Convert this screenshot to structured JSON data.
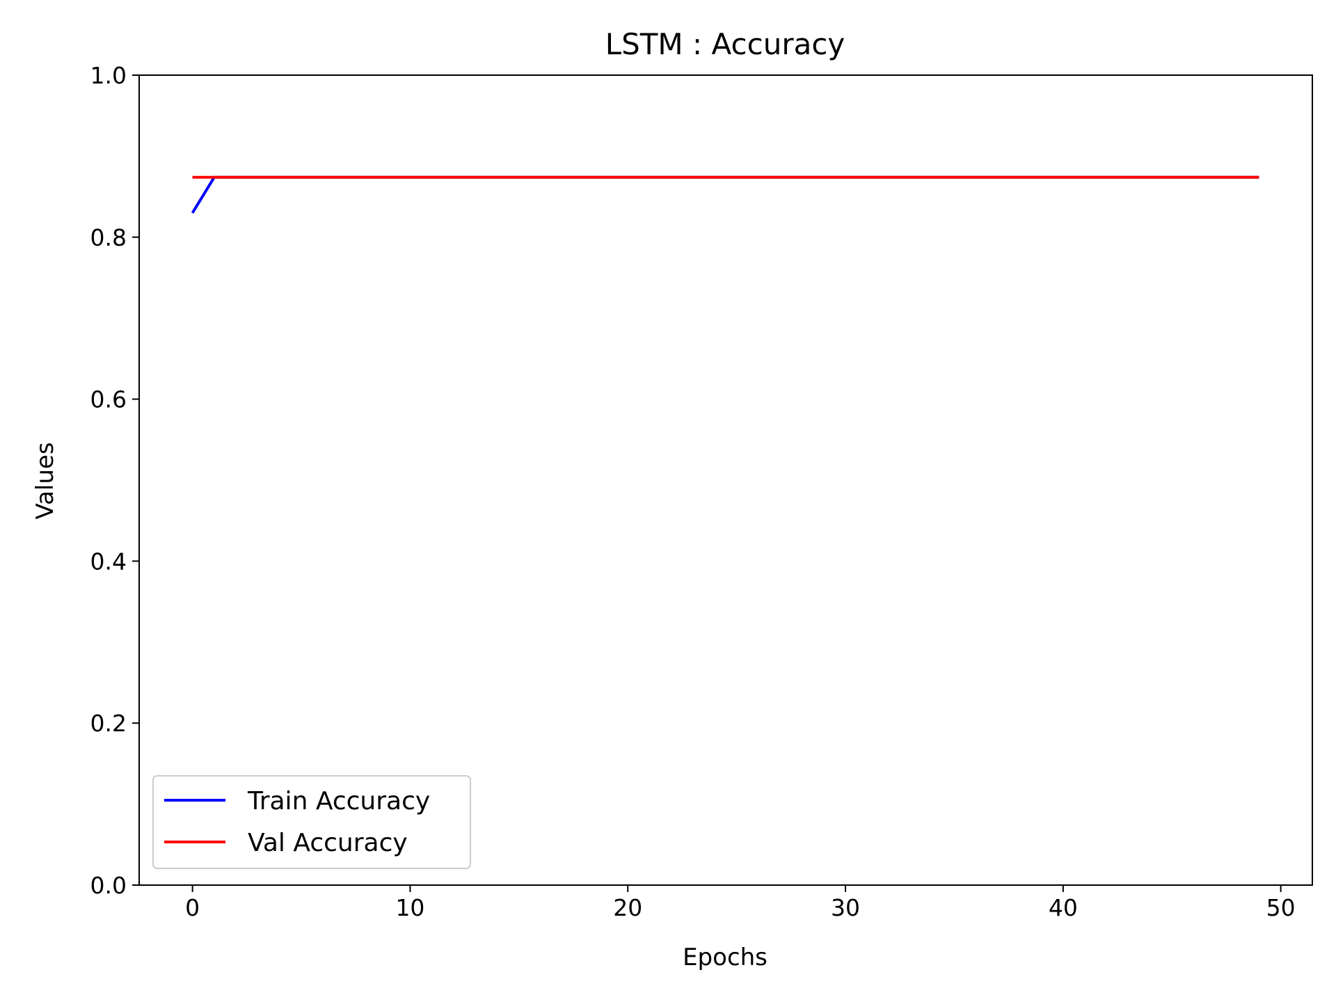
{
  "chart_data": {
    "type": "line",
    "title": "LSTM : Accuracy",
    "xlabel": "Epochs",
    "ylabel": "Values",
    "xlim": [
      -2.45,
      51.45
    ],
    "ylim": [
      0.0,
      1.0
    ],
    "xticks": [
      0,
      10,
      20,
      30,
      40,
      50
    ],
    "yticks": [
      0.0,
      0.2,
      0.4,
      0.6,
      0.8,
      1.0
    ],
    "xtick_labels": [
      "0",
      "10",
      "20",
      "30",
      "40",
      "50"
    ],
    "ytick_labels": [
      "0.0",
      "0.2",
      "0.4",
      "0.6",
      "0.8",
      "1.0"
    ],
    "grid": false,
    "legend": "lower-left",
    "x": [
      0,
      1,
      2,
      3,
      4,
      5,
      6,
      7,
      8,
      9,
      10,
      11,
      12,
      13,
      14,
      15,
      16,
      17,
      18,
      19,
      20,
      21,
      22,
      23,
      24,
      25,
      26,
      27,
      28,
      29,
      30,
      31,
      32,
      33,
      34,
      35,
      36,
      37,
      38,
      39,
      40,
      41,
      42,
      43,
      44,
      45,
      46,
      47,
      48,
      49
    ],
    "series": [
      {
        "name": "Train Accuracy",
        "color": "#0000ff",
        "values": [
          0.83,
          0.874,
          0.874,
          0.874,
          0.874,
          0.874,
          0.874,
          0.874,
          0.874,
          0.874,
          0.874,
          0.874,
          0.874,
          0.874,
          0.874,
          0.874,
          0.874,
          0.874,
          0.874,
          0.874,
          0.874,
          0.874,
          0.874,
          0.874,
          0.874,
          0.874,
          0.874,
          0.874,
          0.874,
          0.874,
          0.874,
          0.874,
          0.874,
          0.874,
          0.874,
          0.874,
          0.874,
          0.874,
          0.874,
          0.874,
          0.874,
          0.874,
          0.874,
          0.874,
          0.874,
          0.874,
          0.874,
          0.874,
          0.874,
          0.874
        ]
      },
      {
        "name": "Val Accuracy",
        "color": "#ff0000",
        "values": [
          0.874,
          0.874,
          0.874,
          0.874,
          0.874,
          0.874,
          0.874,
          0.874,
          0.874,
          0.874,
          0.874,
          0.874,
          0.874,
          0.874,
          0.874,
          0.874,
          0.874,
          0.874,
          0.874,
          0.874,
          0.874,
          0.874,
          0.874,
          0.874,
          0.874,
          0.874,
          0.874,
          0.874,
          0.874,
          0.874,
          0.874,
          0.874,
          0.874,
          0.874,
          0.874,
          0.874,
          0.874,
          0.874,
          0.874,
          0.874,
          0.874,
          0.874,
          0.874,
          0.874,
          0.874,
          0.874,
          0.874,
          0.874,
          0.874,
          0.874
        ]
      }
    ]
  }
}
